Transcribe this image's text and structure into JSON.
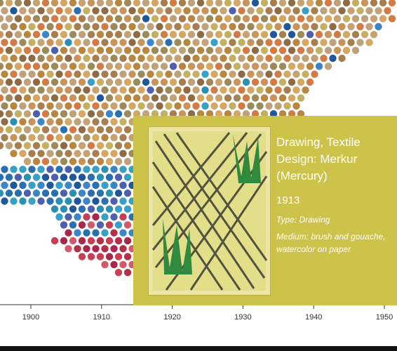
{
  "chart_data": {
    "type": "scatter",
    "x_ticks": [
      "1900",
      "1910",
      "1920",
      "1930",
      "1940",
      "1950"
    ],
    "x_tick_values": [
      1900,
      1910,
      1920,
      1930,
      1940,
      1950
    ],
    "xlim": [
      1898,
      1951
    ],
    "grid": false,
    "legend": "none"
  },
  "tooltip": {
    "title": "Drawing, Textile Design: Merkur (Mercury)",
    "year": "1913",
    "type": "Type: Drawing",
    "medium": "Medium: brush and gouache, watercolor on paper",
    "background": "#cdc24a"
  },
  "colors": {
    "dot_palette_warm": [
      "#c9935a",
      "#b8863f",
      "#d6a663",
      "#a87e4f",
      "#c7a273",
      "#9c8a5a",
      "#c5b062",
      "#d37a45",
      "#8f6b45",
      "#bfa17a"
    ],
    "dot_palette_cool": [
      "#2a6fb0",
      "#3c86c8",
      "#1f5799",
      "#36a0c6",
      "#4d5fae",
      "#2b8fb1"
    ],
    "dot_palette_red": [
      "#c83f55",
      "#b23048",
      "#d25a6a",
      "#a8284a"
    ],
    "artwork_green": "#2f8a3e",
    "artwork_lines": "#3a3a33"
  }
}
